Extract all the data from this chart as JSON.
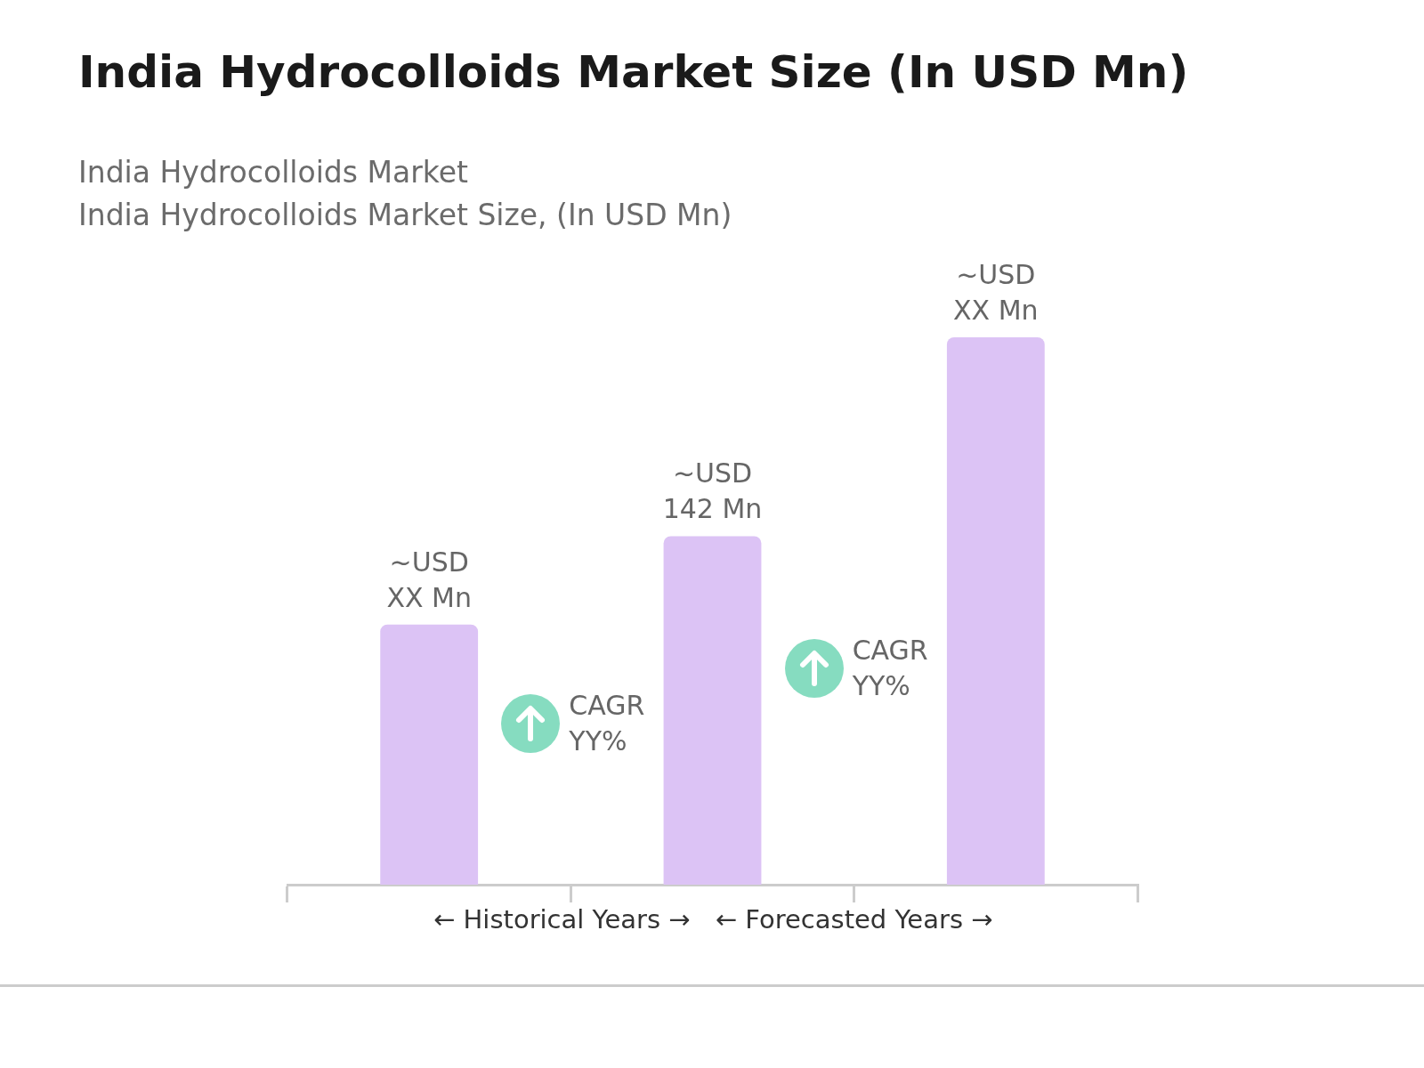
{
  "chart_data": {
    "type": "bar",
    "title": "India Hydrocolloids Market Size (In USD Mn)",
    "subtitle": "India Hydrocolloids Market\nIndia Hydrocolloids Market Size, (In USD Mn)",
    "categories": [
      null,
      null,
      null
    ],
    "values": [
      106,
      142,
      223
    ],
    "color": "#dcc3f5",
    "value_labels": [
      "~USD XX Mn",
      "~USD 142 Mn",
      "~USD XX Mn"
    ],
    "annotations": [
      "CAGR YY%",
      "CAGR YY%",
      "← Historical Years →",
      "← Forecasted Years →"
    ],
    "grid": false,
    "legend": false
  }
}
